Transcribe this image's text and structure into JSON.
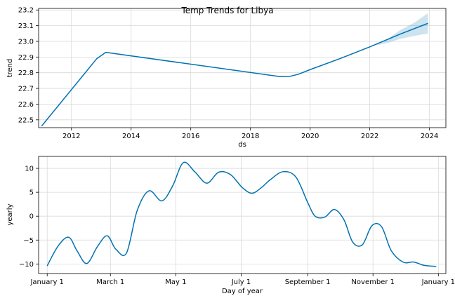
{
  "figure": {
    "title": "Temp Trends for Libya"
  },
  "chart_data": [
    {
      "type": "line",
      "title": "Temp Trends for Libya",
      "xlabel": "ds",
      "ylabel": "trend",
      "xlim": [
        2010.9,
        2024.55
      ],
      "ylim": [
        22.45,
        23.21
      ],
      "grid": true,
      "x_ticks": [
        2012,
        2014,
        2016,
        2018,
        2020,
        2022,
        2024
      ],
      "x_tick_labels": [
        "2012",
        "2014",
        "2016",
        "2018",
        "2020",
        "2022",
        "2024"
      ],
      "y_ticks": [
        22.5,
        22.6,
        22.7,
        22.8,
        22.9,
        23.0,
        23.1,
        23.2
      ],
      "y_tick_labels": [
        "22.5",
        "22.6",
        "22.7",
        "22.8",
        "22.9",
        "23.0",
        "23.1",
        "23.2"
      ],
      "colors": {
        "line": "#0072b2",
        "band": "#0072b2"
      },
      "series": [
        {
          "x": [
            2011.0,
            2012.85,
            2013.15,
            2019.0,
            2019.3,
            2019.6,
            2020.0,
            2021.0,
            2022.0,
            2023.0,
            2023.95
          ],
          "y": [
            22.46,
            22.89,
            22.93,
            22.775,
            22.776,
            22.79,
            22.82,
            22.89,
            22.965,
            23.045,
            23.115
          ]
        }
      ],
      "band": {
        "x": [
          2022.2,
          2022.6,
          2023.0,
          2023.5,
          2023.95
        ],
        "lower": [
          22.975,
          22.99,
          23.015,
          23.035,
          23.05
        ],
        "upper": [
          22.985,
          23.015,
          23.07,
          23.12,
          23.18
        ]
      }
    },
    {
      "type": "line",
      "xlabel": "Day of year",
      "ylabel": "yearly",
      "xlim": [
        -8,
        372
      ],
      "ylim": [
        -12,
        12.5
      ],
      "grid": true,
      "x_ticks": [
        0,
        59,
        120,
        181,
        243,
        304,
        365
      ],
      "x_tick_labels": [
        "January 1",
        "March 1",
        "May 1",
        "July 1",
        "September 1",
        "November 1",
        "January 1"
      ],
      "y_ticks": [
        -10,
        -5,
        0,
        5,
        10
      ],
      "y_tick_labels": [
        "−10",
        "−5",
        "0",
        "5",
        "10"
      ],
      "colors": {
        "line": "#0072b2"
      },
      "series": [
        {
          "x": [
            0,
            10,
            20,
            28,
            37,
            47,
            56,
            64,
            74,
            84,
            95,
            107,
            117,
            127,
            138,
            149,
            160,
            171,
            182,
            191,
            200,
            208,
            220,
            232,
            243,
            250,
            259,
            268,
            277,
            285,
            294,
            303,
            312,
            321,
            332,
            342,
            352,
            363
          ],
          "y": [
            -10.4,
            -6.3,
            -4.4,
            -7.3,
            -9.9,
            -6.3,
            -4.1,
            -6.9,
            -7.7,
            1.2,
            5.3,
            3.2,
            6.3,
            11.2,
            9.2,
            6.9,
            9.2,
            8.7,
            6.0,
            4.8,
            6.0,
            7.6,
            9.3,
            8.2,
            2.9,
            0.0,
            -0.2,
            1.4,
            -0.8,
            -5.4,
            -6.0,
            -2.0,
            -2.2,
            -7.2,
            -9.6,
            -9.6,
            -10.3,
            -10.5
          ]
        }
      ]
    }
  ]
}
